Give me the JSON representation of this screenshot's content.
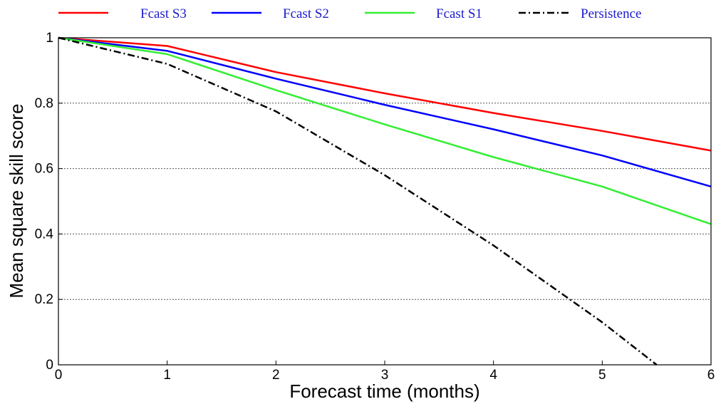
{
  "chart_data": {
    "type": "line",
    "title": "",
    "xlabel": "Forecast time (months)",
    "ylabel": "Mean square skill score",
    "xlim": [
      0,
      6
    ],
    "ylim": [
      0,
      1
    ],
    "x_ticks": [
      "0",
      "1",
      "2",
      "3",
      "4",
      "5",
      "6"
    ],
    "y_ticks": [
      "0",
      "0.2",
      "0.4",
      "0.6",
      "0.8",
      "1"
    ],
    "grid": "horizontal dotted at 0.2, 0.4, 0.6, 0.8",
    "legend_position": "top, above plot",
    "series": [
      {
        "name": "Fcast S3",
        "color": "#ff0000",
        "style": "solid",
        "x": [
          0,
          1,
          2,
          3,
          4,
          5,
          6
        ],
        "y": [
          1.0,
          0.975,
          0.895,
          0.83,
          0.77,
          0.715,
          0.655
        ]
      },
      {
        "name": "Fcast S2",
        "color": "#0000ff",
        "style": "solid",
        "x": [
          0,
          1,
          2,
          3,
          4,
          5,
          6
        ],
        "y": [
          1.0,
          0.96,
          0.875,
          0.795,
          0.72,
          0.64,
          0.545
        ]
      },
      {
        "name": "Fcast S1",
        "color": "#33ee33",
        "style": "solid",
        "x": [
          0,
          1,
          2,
          3,
          4,
          5,
          6
        ],
        "y": [
          1.0,
          0.95,
          0.84,
          0.735,
          0.635,
          0.545,
          0.43
        ]
      },
      {
        "name": "Persistence",
        "color": "#000000",
        "style": "dash-dot",
        "x": [
          0,
          1,
          2,
          3,
          4,
          5,
          5.5
        ],
        "y": [
          1.0,
          0.92,
          0.775,
          0.58,
          0.365,
          0.13,
          0.0
        ]
      }
    ]
  }
}
